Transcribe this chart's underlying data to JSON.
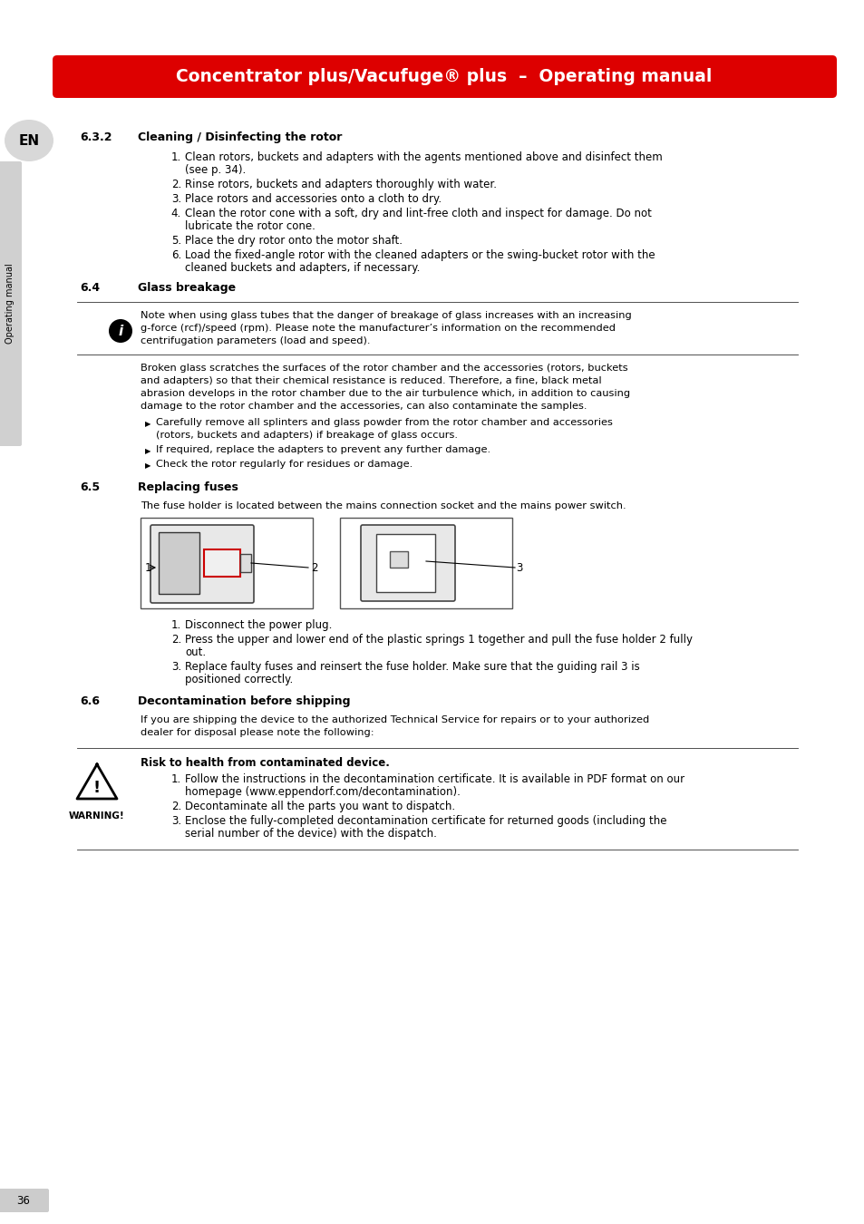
{
  "header_text": "Concentrator plus/Vacufuge® plus  –  Operating manual",
  "header_bg": "#dd0000",
  "header_text_color": "#ffffff",
  "page_bg": "#ffffff",
  "left_tab_text": "Operating manual",
  "left_tab_bg": "#cccccc",
  "en_text": "EN",
  "page_number": "36",
  "page_number_bg": "#cccccc",
  "section_632_num": "6.3.2",
  "section_632_title": "Cleaning / Disinfecting the rotor",
  "section_632_items": [
    "Clean rotors, buckets and adapters with the agents mentioned above and disinfect them\n(see p. 34).",
    "Rinse rotors, buckets and adapters thoroughly with water.",
    "Place rotors and accessories onto a cloth to dry.",
    "Clean the rotor cone with a soft, dry and lint-free cloth and inspect for damage. Do not\nlubricate the rotor cone.",
    "Place the dry rotor onto the motor shaft.",
    "Load the fixed-angle rotor with the cleaned adapters or the swing-bucket rotor with the\ncleaned buckets and adapters, if necessary."
  ],
  "section_64_num": "6.4",
  "section_64_title": "Glass breakage",
  "section_64_info_text": "Note when using glass tubes that the danger of breakage of glass increases with an increasing\ng-force (rcf)/speed (rpm). Please note the manufacturer’s information on the recommended\ncentrifugation parameters (load and speed).",
  "section_64_body": "Broken glass scratches the surfaces of the rotor chamber and the accessories (rotors, buckets\nand adapters) so that their chemical resistance is reduced. Therefore, a fine, black metal\nabrasion develops in the rotor chamber due to the air turbulence which, in addition to causing\ndamage to the rotor chamber and the accessories, can also contaminate the samples.",
  "section_64_bullets": [
    "Carefully remove all splinters and glass powder from the rotor chamber and accessories\n(rotors, buckets and adapters) if breakage of glass occurs.",
    "If required, replace the adapters to prevent any further damage.",
    "Check the rotor regularly for residues or damage."
  ],
  "section_65_num": "6.5",
  "section_65_title": "Replacing fuses",
  "section_65_intro": "The fuse holder is located between the mains connection socket and the mains power switch.",
  "section_65_items": [
    "Disconnect the power plug.",
    "Press the upper and lower end of the plastic springs 1 together and pull the fuse holder 2 fully\nout.",
    "Replace faulty fuses and reinsert the fuse holder. Make sure that the guiding rail 3 is\npositioned correctly."
  ],
  "section_66_num": "6.6",
  "section_66_title": "Decontamination before shipping",
  "section_66_intro": "If you are shipping the device to the authorized Technical Service for repairs or to your authorized\ndealer for disposal please note the following:",
  "section_66_warning_bold": "Risk to health from contaminated device.",
  "section_66_warning_items": [
    "Follow the instructions in the decontamination certificate. It is available in PDF format on our\nhomepage (www.eppendorf.com/decontamination).",
    "Decontaminate all the parts you want to dispatch.",
    "Enclose the fully-completed decontamination certificate for returned goods (including the\nserial number of the device) with the dispatch."
  ]
}
